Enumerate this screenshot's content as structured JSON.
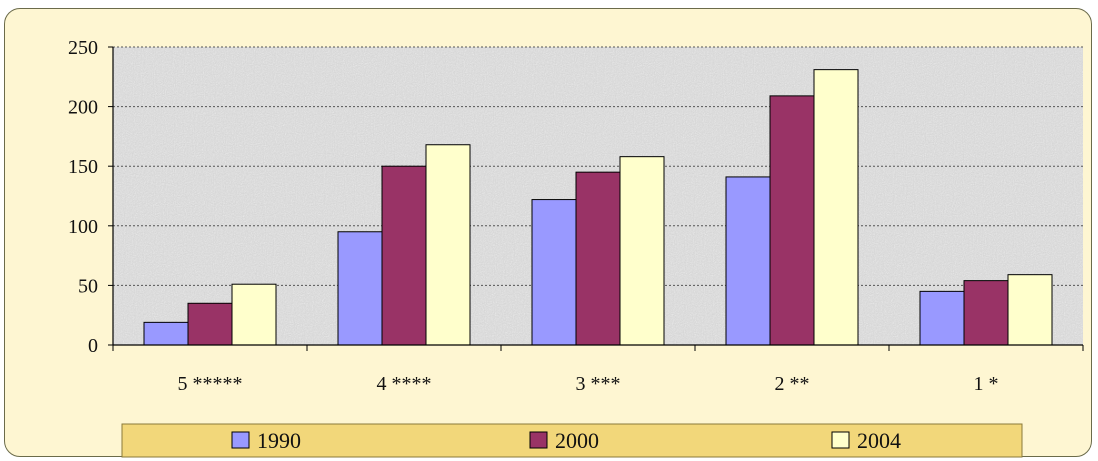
{
  "chart_data": {
    "type": "bar",
    "categories": [
      "5 *****",
      "4 ****",
      "3 ***",
      "2 **",
      "1 *"
    ],
    "series": [
      {
        "name": "1990",
        "values": [
          19,
          95,
          122,
          141,
          45
        ]
      },
      {
        "name": "2000",
        "values": [
          35,
          150,
          145,
          209,
          54
        ]
      },
      {
        "name": "2004",
        "values": [
          51,
          168,
          158,
          231,
          59
        ]
      }
    ],
    "ylim": [
      0,
      250
    ],
    "yticks": [
      0,
      50,
      100,
      150,
      200,
      250
    ],
    "grid": true,
    "legend_position": "bottom",
    "colors": [
      "#9999ff",
      "#993366",
      "#ffffcc"
    ]
  }
}
